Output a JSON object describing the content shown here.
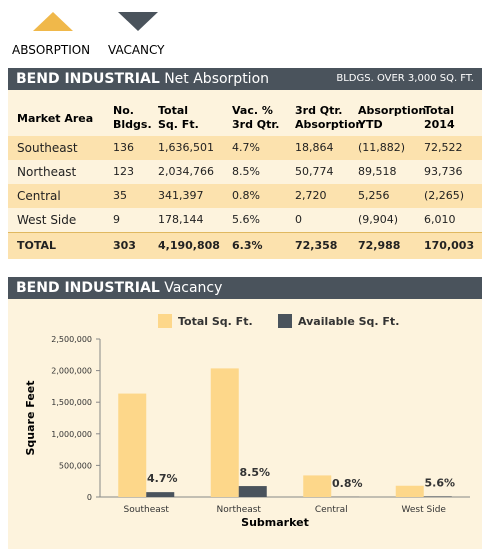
{
  "legend": [
    "ABSORPTION",
    "VACANCY"
  ],
  "table": {
    "title": "BEND INDUSTRIAL",
    "subtitle": "Net Absorption",
    "note": "BLDGS. OVER 3,000 SQ. FT.",
    "columns": [
      [
        "Market Area"
      ],
      [
        "No.",
        "Bldgs."
      ],
      [
        "Total",
        "Sq. Ft."
      ],
      [
        "Vac. %",
        "3rd Qtr."
      ],
      [
        "3rd Qtr.",
        "Absorption"
      ],
      [
        "Absorption",
        "YTD"
      ],
      [
        "Total",
        "2014"
      ]
    ],
    "rows": [
      [
        "Southeast",
        "136",
        "1,636,501",
        "4.7%",
        "18,864",
        "(11,882)",
        "72,522"
      ],
      [
        "Northeast",
        "123",
        "2,034,766",
        "8.5%",
        "50,774",
        "89,518",
        "93,736"
      ],
      [
        "Central",
        "35",
        "341,397",
        "0.8%",
        "2,720",
        "5,256",
        "(2,265)"
      ],
      [
        "West Side",
        "9",
        "178,144",
        "5.6%",
        "0",
        "(9,904)",
        "6,010"
      ]
    ],
    "total": [
      "TOTAL",
      "303",
      "4,190,808",
      "6.3%",
      "72,358",
      "72,988",
      "170,003"
    ]
  },
  "chart_data": {
    "type": "bar",
    "title": "BEND INDUSTRIAL",
    "subtitle": "Vacancy",
    "categories": [
      "Southeast",
      "Northeast",
      "Central",
      "West Side"
    ],
    "series": [
      {
        "name": "Total Sq. Ft.",
        "color": "#fdd78a",
        "values": [
          1636501,
          2034766,
          341397,
          178144
        ]
      },
      {
        "name": "Available Sq. Ft.",
        "color": "#4a535c",
        "values": [
          76916,
          172955,
          2731,
          9976
        ]
      }
    ],
    "annotations": [
      "4.7%",
      "8.5%",
      "0.8%",
      "5.6%"
    ],
    "xlabel": "Submarket",
    "ylabel": "Square Feet",
    "ylim": [
      0,
      2500000
    ],
    "yticks": [
      0,
      {
        "value": 500000,
        "label": "500,000"
      },
      {
        "value": 1000000,
        "label": "1,000,000"
      },
      {
        "value": 1500000,
        "label": "1,500,000"
      },
      {
        "value": 2000000,
        "label": "2,000,000"
      },
      {
        "value": 2500000,
        "label": "2,500,000"
      }
    ]
  }
}
